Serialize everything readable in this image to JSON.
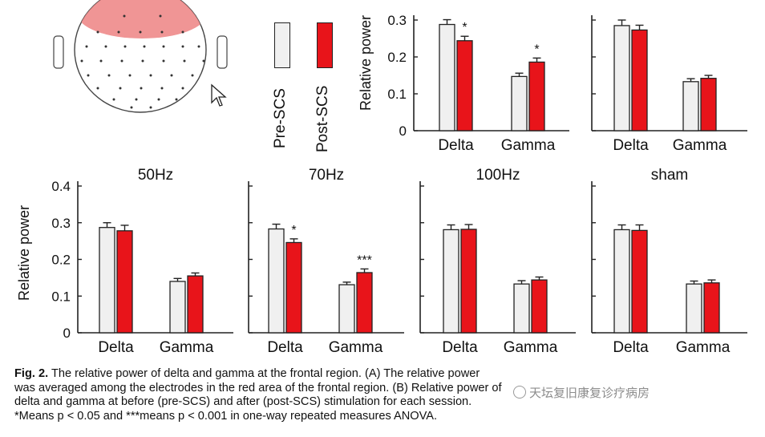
{
  "legend": {
    "pre_label": "Pre-SCS",
    "post_label": "Post-SCS",
    "pre_color": "#f0f0f0",
    "post_color": "#e8141a"
  },
  "ylabel": "Relative power",
  "caption": {
    "fig_label": "Fig. 2.",
    "line1": "The relative power of delta and gamma at the frontal region. (A) The relative power",
    "line2": "was averaged among the electrodes in the red area of the frontal region. (B) Relative power of",
    "line3": "delta and gamma at before (pre-SCS) and after (post-SCS) stimulation for each session.",
    "line4": "*Means p < 0.05 and ***means p < 0.001 in one-way repeated measures ANOVA."
  },
  "watermark": "天坛复旧康复诊疗病房",
  "chart_data": [
    {
      "type": "bar",
      "title": "",
      "ylabel": "Relative power",
      "categories": [
        "Delta",
        "Gamma"
      ],
      "series": [
        {
          "name": "Pre-SCS",
          "values": [
            0.288,
            0.147
          ],
          "errors": [
            0.013,
            0.009
          ]
        },
        {
          "name": "Post-SCS",
          "values": [
            0.244,
            0.186
          ],
          "errors": [
            0.012,
            0.011
          ]
        }
      ],
      "significance": [
        {
          "category": "Delta",
          "label": "*"
        },
        {
          "category": "Gamma",
          "label": "*"
        }
      ],
      "yticks": [
        "0",
        "0.1",
        "0.2",
        "0.3"
      ],
      "ylim": [
        0,
        0.3
      ]
    },
    {
      "type": "bar",
      "title": "",
      "categories": [
        "Delta",
        "Gamma"
      ],
      "series": [
        {
          "name": "Pre-SCS",
          "values": [
            0.285,
            0.133
          ],
          "errors": [
            0.015,
            0.008
          ]
        },
        {
          "name": "Post-SCS",
          "values": [
            0.273,
            0.142
          ],
          "errors": [
            0.013,
            0.008
          ]
        }
      ],
      "significance": [],
      "ylim": [
        0,
        0.3
      ]
    },
    {
      "type": "bar",
      "title": "50Hz",
      "ylabel": "Relative power",
      "categories": [
        "Delta",
        "Gamma"
      ],
      "series": [
        {
          "name": "Pre-SCS",
          "values": [
            0.287,
            0.14
          ],
          "errors": [
            0.013,
            0.008
          ]
        },
        {
          "name": "Post-SCS",
          "values": [
            0.278,
            0.155
          ],
          "errors": [
            0.015,
            0.008
          ]
        }
      ],
      "significance": [],
      "yticks": [
        "0",
        "0.1",
        "0.2",
        "0.3",
        "0.4"
      ],
      "ylim": [
        0,
        0.4
      ]
    },
    {
      "type": "bar",
      "title": "70Hz",
      "categories": [
        "Delta",
        "Gamma"
      ],
      "series": [
        {
          "name": "Pre-SCS",
          "values": [
            0.283,
            0.131
          ],
          "errors": [
            0.013,
            0.007
          ]
        },
        {
          "name": "Post-SCS",
          "values": [
            0.246,
            0.164
          ],
          "errors": [
            0.01,
            0.01
          ]
        }
      ],
      "significance": [
        {
          "category": "Delta",
          "label": "*"
        },
        {
          "category": "Gamma",
          "label": "***"
        }
      ],
      "ylim": [
        0,
        0.4
      ]
    },
    {
      "type": "bar",
      "title": "100Hz",
      "categories": [
        "Delta",
        "Gamma"
      ],
      "series": [
        {
          "name": "Pre-SCS",
          "values": [
            0.281,
            0.133
          ],
          "errors": [
            0.013,
            0.009
          ]
        },
        {
          "name": "Post-SCS",
          "values": [
            0.282,
            0.144
          ],
          "errors": [
            0.013,
            0.008
          ]
        }
      ],
      "significance": [],
      "ylim": [
        0,
        0.4
      ]
    },
    {
      "type": "bar",
      "title": "sham",
      "categories": [
        "Delta",
        "Gamma"
      ],
      "series": [
        {
          "name": "Pre-SCS",
          "values": [
            0.281,
            0.133
          ],
          "errors": [
            0.013,
            0.008
          ]
        },
        {
          "name": "Post-SCS",
          "values": [
            0.279,
            0.136
          ],
          "errors": [
            0.015,
            0.008
          ]
        }
      ],
      "significance": [],
      "ylim": [
        0,
        0.4
      ]
    }
  ]
}
